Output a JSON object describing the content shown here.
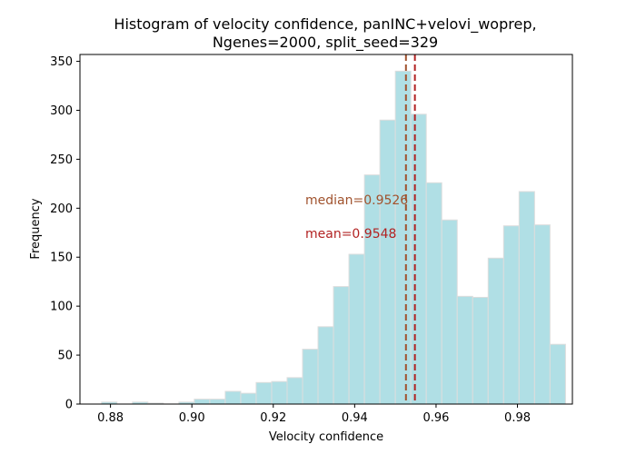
{
  "chart_data": {
    "type": "bar",
    "title_line1": "Histogram of velocity confidence, panINC+velovi_woprep,",
    "title_line2": "Ngenes=2000, split_seed=329",
    "xlabel": "Velocity confidence",
    "ylabel": "Frequency",
    "xlim": [
      0.8725,
      0.9935
    ],
    "ylim": [
      0,
      357
    ],
    "xticks": [
      0.88,
      0.9,
      0.92,
      0.94,
      0.96,
      0.98
    ],
    "xtick_labels": [
      "0.88",
      "0.90",
      "0.92",
      "0.94",
      "0.96",
      "0.98"
    ],
    "yticks": [
      0,
      50,
      100,
      150,
      200,
      250,
      300,
      350
    ],
    "ytick_labels": [
      "0",
      "50",
      "100",
      "150",
      "200",
      "250",
      "300",
      "350"
    ],
    "grid": false,
    "bin_width": 0.0038,
    "bin_edges_start": 0.8778,
    "values": [
      2,
      0,
      2,
      1,
      0,
      2,
      5,
      5,
      13,
      11,
      22,
      23,
      27,
      56,
      79,
      120,
      153,
      234,
      290,
      340,
      296,
      226,
      188,
      110,
      109,
      149,
      182,
      217,
      183,
      61
    ],
    "bar_color": "#b0dfe5",
    "bar_edge_color": "#dddddd",
    "median": 0.9526,
    "median_label": "median=0.9526",
    "median_color": "#a0522d",
    "mean": 0.9548,
    "mean_label": "mean=0.9548",
    "mean_color": "#b22222"
  }
}
